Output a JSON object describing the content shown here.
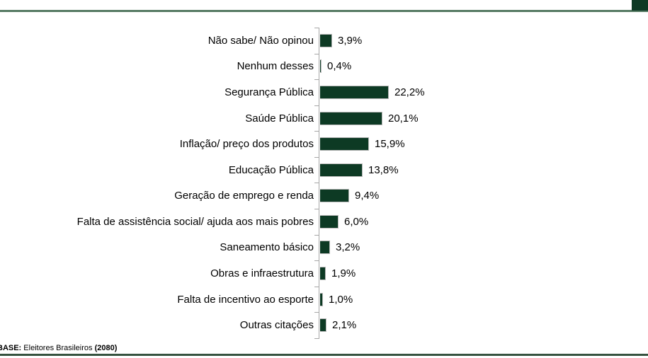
{
  "chart_data": {
    "type": "bar",
    "orientation": "horizontal",
    "title": "",
    "xlabel": "",
    "ylabel": "",
    "xlim": [
      0,
      25
    ],
    "grid": false,
    "legend": false,
    "bar_color": "#0d3a24",
    "categories": [
      "Não sabe/ Não opinou",
      "Nenhum desses",
      "Segurança Pública",
      "Saúde Pública",
      "Inflação/ preço dos produtos",
      "Educação Pública",
      "Geração de emprego e renda",
      "Falta de assistência social/ ajuda aos mais pobres",
      "Saneamento básico",
      "Obras e infraestrutura",
      "Falta de incentivo ao esporte",
      "Outras citações"
    ],
    "values": [
      3.9,
      0.4,
      22.2,
      20.1,
      15.9,
      13.8,
      9.4,
      6.0,
      3.2,
      1.9,
      1.0,
      2.1
    ],
    "value_labels": [
      "3,9%",
      "0,4%",
      "22,2%",
      "20,1%",
      "15,9%",
      "13,8%",
      "9,4%",
      "6,0%",
      "3,2%",
      "1,9%",
      "1,0%",
      "2,1%"
    ]
  },
  "footnote": {
    "prefix": "BASE:",
    "text": " Eleitores Brasileiros ",
    "sample": "(2080)"
  },
  "decor": {
    "top_line_color": "#567a63",
    "corner_block_color": "#0d3a24",
    "bottom_line_color": "#35523f",
    "axis_color": "#a6a6a6"
  }
}
